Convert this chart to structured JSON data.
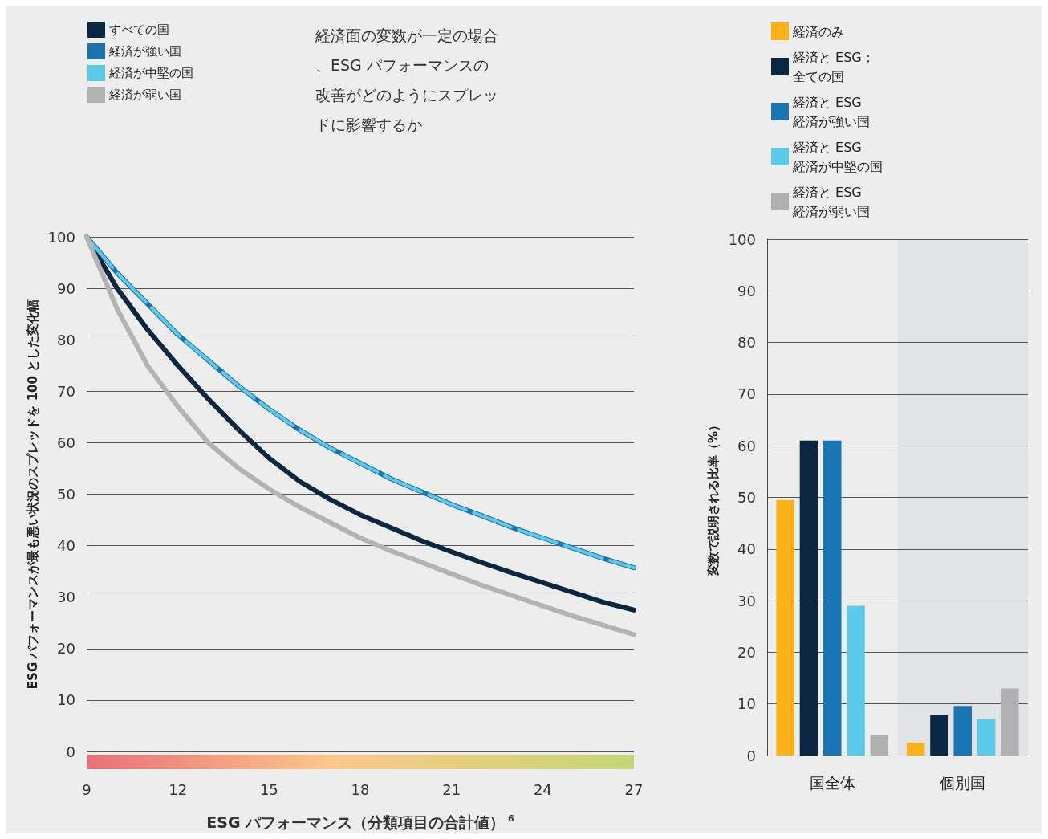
{
  "chart_data": [
    {
      "type": "line",
      "title": "経済面の変数が一定の場合、ESG パフォーマンスの改善がどのようにスプレッドに影響するか",
      "xlabel": "ESG パフォーマンス（分類項目の合計値）$^{6}$",
      "ylabel": "ESG パフォーマンスが最も悪い状況のスプレッドを 100 とした変化幅",
      "x": [
        9,
        10,
        11,
        12,
        13,
        14,
        15,
        16,
        17,
        18,
        19,
        20,
        21,
        22,
        23,
        24,
        25,
        26,
        27
      ],
      "series": [
        {
          "name": "すべての国",
          "color": "#0b2640",
          "line_style": "solid",
          "values": [
            100,
            90,
            82,
            75,
            68.5,
            62.5,
            57,
            52.5,
            49,
            46,
            43.5,
            41,
            38.8,
            36.7,
            34.7,
            32.8,
            30.9,
            29,
            27.5
          ]
        },
        {
          "name": "経済が強い国",
          "color": "#1a72b0",
          "line_style": "solid",
          "values": [
            100,
            93,
            87,
            81,
            76,
            71,
            66.5,
            62.5,
            59,
            56,
            53,
            50.5,
            48,
            45.8,
            43.5,
            41.5,
            39.5,
            37.5,
            35.7
          ]
        },
        {
          "name": "経済が中堅の国",
          "color": "#5bc9e8",
          "line_style": "dashed",
          "values": [
            100,
            93,
            87,
            81,
            76,
            71,
            66.5,
            62.5,
            59,
            56,
            53,
            50.5,
            48,
            45.8,
            43.5,
            41.5,
            39.5,
            37.5,
            35.7
          ]
        },
        {
          "name": "経済が弱い国",
          "color": "#b3b3b3",
          "line_style": "solid",
          "values": [
            100,
            86,
            75,
            67,
            60,
            55,
            51,
            47.5,
            44.5,
            41.5,
            39,
            36.8,
            34.5,
            32.3,
            30.3,
            28.3,
            26.3,
            24.5,
            22.7
          ]
        }
      ],
      "xlim": [
        9,
        27
      ],
      "xticks": [
        9,
        12,
        15,
        18,
        21,
        24,
        27
      ],
      "ylim": [
        0,
        100
      ],
      "yticks": [
        0,
        10,
        20,
        30,
        40,
        50,
        60,
        70,
        80,
        90,
        100
      ],
      "grid": "y",
      "legend": "top left",
      "marker": "none"
    },
    {
      "type": "bar",
      "ylabel": "変数で説明される比率（%）",
      "categories": [
        "国全体",
        "個別国"
      ],
      "series": [
        {
          "name": "経済のみ",
          "color": "#fbb017",
          "values": [
            49.5,
            2.5
          ]
        },
        {
          "name": "経済と ESG；全ての国",
          "color": "#0b2640",
          "values": [
            61,
            7.8
          ]
        },
        {
          "name": "経済と ESG 経済が強い国",
          "color": "#1a75b5",
          "values": [
            61,
            9.6
          ]
        },
        {
          "name": "経済と ESG 経済が中堅の国",
          "color": "#5bc9e8",
          "values": [
            29,
            7
          ]
        },
        {
          "name": "経済と ESG 経済が弱い国",
          "color": "#b0b0b0",
          "values": [
            4,
            13
          ]
        }
      ],
      "bands": [
        {
          "axis": "x",
          "from": "個別国",
          "to": "個別国",
          "color": "#e2e3e6"
        }
      ],
      "ylim": [
        0,
        100
      ],
      "yticks": [
        0,
        10,
        20,
        30,
        40,
        50,
        60,
        70,
        80,
        90,
        100
      ],
      "grid": "y",
      "legend": "top"
    }
  ]
}
